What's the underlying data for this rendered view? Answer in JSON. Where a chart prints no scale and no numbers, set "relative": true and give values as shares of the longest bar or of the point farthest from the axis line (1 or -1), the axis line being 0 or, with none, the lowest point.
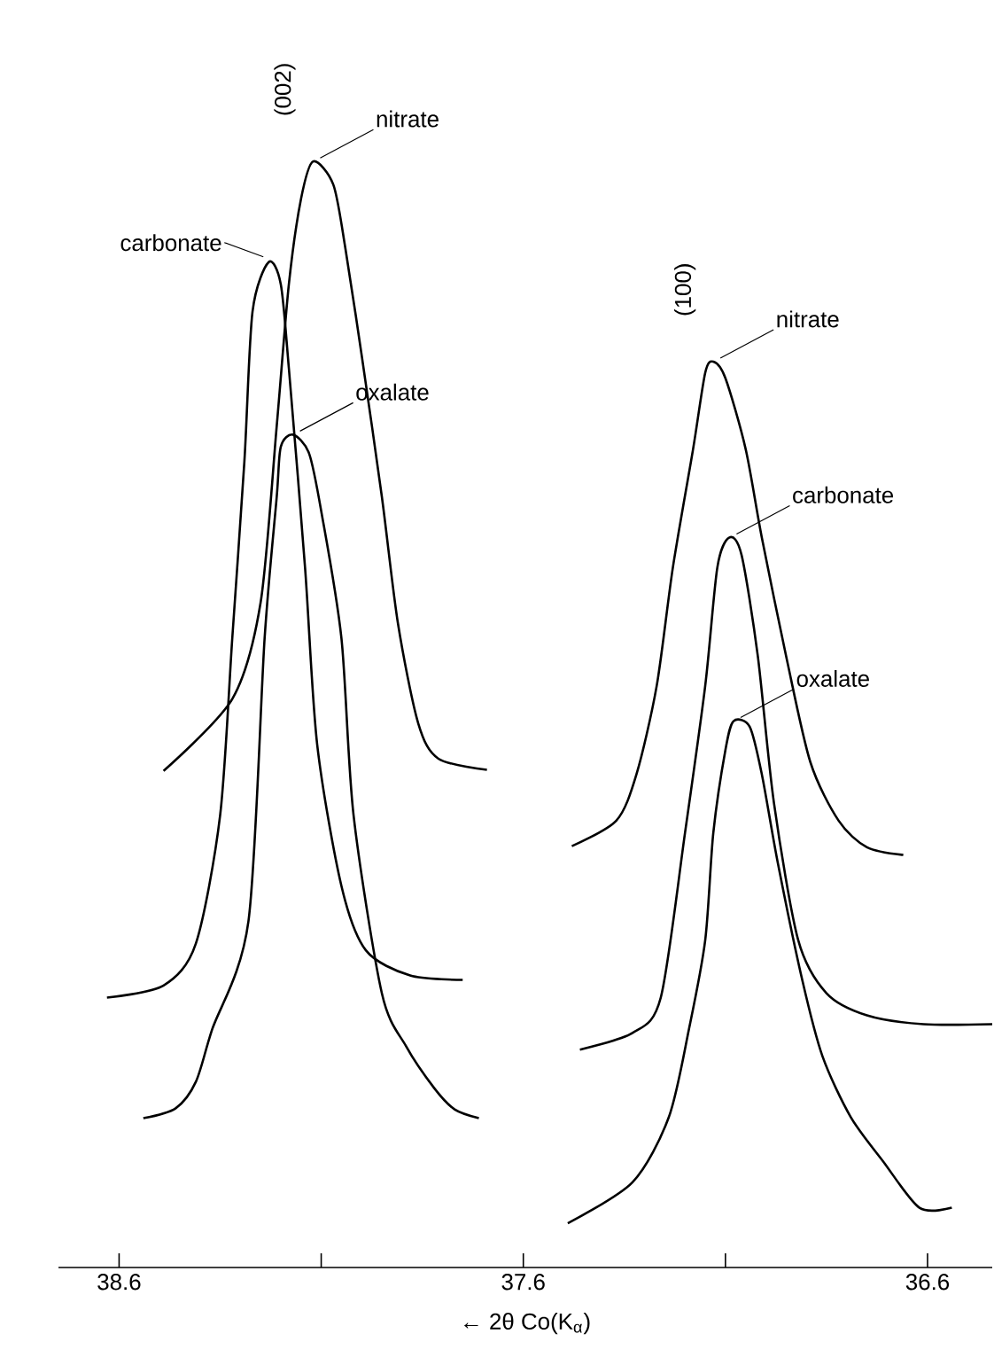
{
  "chart_data": {
    "type": "line",
    "relative": true,
    "xlabel": "← 2θ Co(K$_{α}$)",
    "xlim": [
      38.75,
      36.44
    ],
    "xticks": [
      38.6,
      {
        "value": 38.1,
        "label": null
      },
      37.6,
      {
        "value": 37.1,
        "label": null
      },
      36.6
    ],
    "annotations": [
      "(002)",
      "(100)"
    ],
    "series": [
      {
        "name": "nitrate",
        "color": "#000000",
        "x": [
          38.49,
          38.32,
          38.25,
          38.21,
          38.18,
          38.15,
          38.12,
          38.07,
          38.04,
          38.0,
          37.95,
          37.91,
          37.86,
          37.81,
          37.69
        ],
        "values": [
          0.449,
          0.514,
          0.601,
          0.761,
          0.889,
          0.966,
          1,
          0.979,
          0.921,
          0.825,
          0.697,
          0.582,
          0.492,
          0.46,
          0.45
        ]
      },
      {
        "name": "carbonate",
        "color": "#000000",
        "x": [
          38.63,
          38.49,
          38.41,
          38.35,
          38.32,
          38.29,
          38.27,
          38.23,
          38.2,
          38.18,
          38.14,
          38.11,
          38.05,
          37.99,
          37.88,
          37.75
        ],
        "values": [
          0.244,
          0.255,
          0.293,
          0.409,
          0.569,
          0.729,
          0.864,
          0.909,
          0.889,
          0.813,
          0.633,
          0.473,
          0.345,
          0.287,
          0.264,
          0.26
        ]
      },
      {
        "name": "oxalate",
        "color": "#000000",
        "x": [
          38.54,
          38.46,
          38.41,
          38.37,
          38.28,
          38.24,
          38.21,
          38.2,
          38.17,
          38.13,
          38.1,
          38.05,
          38.02,
          37.95,
          37.89,
          37.82,
          37.77,
          37.71
        ],
        "values": [
          0.135,
          0.144,
          0.168,
          0.215,
          0.313,
          0.569,
          0.697,
          0.742,
          0.753,
          0.736,
          0.684,
          0.569,
          0.409,
          0.248,
          0.2,
          0.162,
          0.143,
          0.135
        ]
      },
      {
        "name": "nitrate",
        "color": "#000000",
        "x": [
          37.48,
          37.37,
          37.32,
          37.27,
          37.23,
          37.18,
          37.15,
          37.13,
          37.1,
          37.05,
          37.01,
          36.95,
          36.89,
          36.82,
          36.75,
          36.66
        ],
        "values": [
          0.381,
          0.404,
          0.446,
          0.526,
          0.633,
          0.74,
          0.809,
          0.819,
          0.804,
          0.74,
          0.66,
          0.553,
          0.457,
          0.404,
          0.38,
          0.373
        ]
      },
      {
        "name": "carbonate",
        "color": "#000000",
        "x": [
          37.46,
          37.33,
          37.26,
          37.2,
          37.15,
          37.12,
          37.09,
          37.06,
          37.02,
          36.98,
          36.92,
          36.85,
          36.75,
          36.61,
          36.44
        ],
        "values": [
          0.197,
          0.212,
          0.244,
          0.393,
          0.526,
          0.633,
          0.66,
          0.644,
          0.553,
          0.42,
          0.296,
          0.248,
          0.228,
          0.22,
          0.22
        ]
      },
      {
        "name": "oxalate",
        "color": "#000000",
        "x": [
          37.49,
          37.33,
          37.24,
          37.19,
          37.15,
          37.13,
          37.1,
          37.08,
          37.04,
          37.01,
          36.97,
          36.91,
          36.86,
          36.79,
          36.71,
          36.62,
          36.54
        ],
        "values": [
          0.04,
          0.077,
          0.136,
          0.216,
          0.296,
          0.393,
          0.468,
          0.494,
          0.489,
          0.446,
          0.365,
          0.26,
          0.191,
          0.136,
          0.096,
          0.054,
          0.054
        ]
      }
    ]
  }
}
